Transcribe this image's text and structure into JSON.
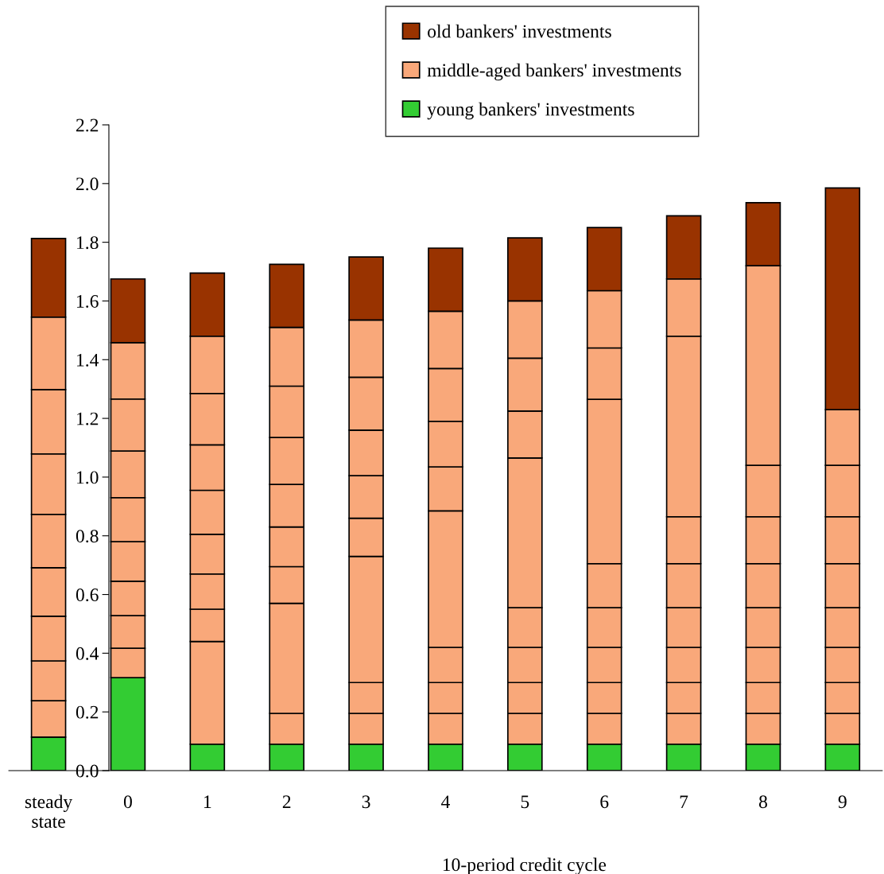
{
  "chart_data": {
    "type": "bar",
    "stacked": true,
    "xlabel": "10-period credit cycle",
    "categories": [
      "steady\nstate",
      "0",
      "1",
      "2",
      "3",
      "4",
      "5",
      "6",
      "7",
      "8",
      "9"
    ],
    "series": [
      {
        "name": "young bankers' investments",
        "color": "#33cc33",
        "values": [
          0.114,
          0.317,
          0.09,
          0.09,
          0.09,
          0.09,
          0.09,
          0.09,
          0.09,
          0.09,
          0.09
        ]
      },
      {
        "name": "middle-aged bankers' investments",
        "color": "#f9a87a",
        "values": [
          0.124,
          0.1,
          0.35,
          0.105,
          0.105,
          0.105,
          0.105,
          0.105,
          0.105,
          0.105,
          0.105
        ]
      },
      {
        "color": "#f9a87a",
        "values": [
          0.136,
          0.111,
          0.11,
          0.375,
          0.105,
          0.105,
          0.105,
          0.105,
          0.105,
          0.105,
          0.105
        ]
      },
      {
        "color": "#f9a87a",
        "values": [
          0.152,
          0.117,
          0.12,
          0.125,
          0.43,
          0.12,
          0.12,
          0.12,
          0.12,
          0.12,
          0.12
        ]
      },
      {
        "color": "#f9a87a",
        "values": [
          0.165,
          0.135,
          0.135,
          0.135,
          0.13,
          0.465,
          0.135,
          0.135,
          0.135,
          0.135,
          0.135
        ]
      },
      {
        "color": "#f9a87a",
        "values": [
          0.182,
          0.15,
          0.15,
          0.145,
          0.145,
          0.15,
          0.51,
          0.15,
          0.15,
          0.15,
          0.15
        ]
      },
      {
        "color": "#f9a87a",
        "values": [
          0.206,
          0.159,
          0.155,
          0.16,
          0.155,
          0.155,
          0.16,
          0.56,
          0.16,
          0.16,
          0.16
        ]
      },
      {
        "color": "#f9a87a",
        "values": [
          0.219,
          0.177,
          0.175,
          0.175,
          0.18,
          0.18,
          0.18,
          0.175,
          0.615,
          0.175,
          0.175
        ]
      },
      {
        "color": "#f9a87a",
        "values": [
          0.247,
          0.192,
          0.195,
          0.2,
          0.195,
          0.195,
          0.195,
          0.195,
          0.195,
          0.68,
          0.19
        ]
      },
      {
        "name": "old bankers' investments",
        "color": "#993300",
        "values": [
          0.268,
          0.217,
          0.215,
          0.215,
          0.215,
          0.215,
          0.215,
          0.215,
          0.215,
          0.215,
          0.755
        ]
      }
    ],
    "ylim": [
      0,
      2.2
    ],
    "yticks": [
      {
        "value": 0,
        "label": "0.0"
      },
      {
        "value": 0.2,
        "label": "0.2"
      },
      {
        "value": 0.4,
        "label": "0.4"
      },
      {
        "value": 0.6,
        "label": "0.6"
      },
      {
        "value": 0.8,
        "label": "0.8"
      },
      {
        "value": 1.0,
        "label": "1.0"
      },
      {
        "value": 1.2,
        "label": "1.2"
      },
      {
        "value": 1.4,
        "label": "1.4"
      },
      {
        "value": 1.6,
        "label": "1.6"
      },
      {
        "value": 1.8,
        "label": "1.8"
      },
      {
        "value": 2.0,
        "label": "2.0"
      },
      {
        "value": 2.2,
        "label": "2.2"
      }
    ],
    "legend": "top",
    "grid": false
  }
}
